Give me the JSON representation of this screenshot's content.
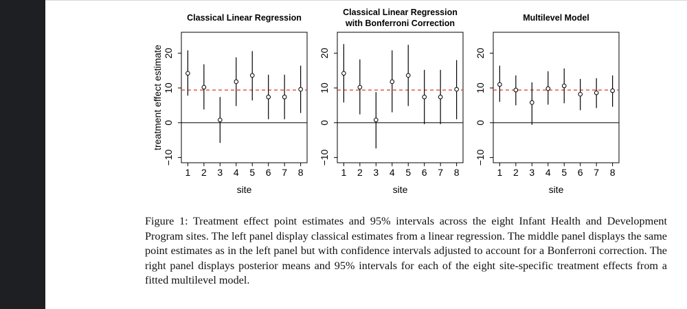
{
  "figure": {
    "caption": "Figure 1: Treatment effect point estimates and 95% intervals across the eight Infant Health and Development Program sites. The left panel display classical estimates from a linear regression. The middle panel displays the same point estimates as in the left panel but with confidence intervals adjusted to account for a Bonferroni correction. The right panel displays posterior means and 95% intervals for each of the eight site-specific treatment effects from a fitted multilevel model.",
    "colors": {
      "reference_line": "#e3352a",
      "interval": "#000000",
      "zero_line": "#000000"
    }
  },
  "chart_data": [
    {
      "type": "scatter",
      "title": [
        "Classical Linear Regression"
      ],
      "xlabel": "site",
      "ylabel": "treatment effect estimate",
      "x": [
        1,
        2,
        3,
        4,
        5,
        6,
        7,
        8
      ],
      "xticks": [
        "1",
        "2",
        "3",
        "4",
        "5",
        "6",
        "7",
        "8"
      ],
      "yticks": [
        "−10",
        "0",
        "10",
        "20"
      ],
      "ylim": [
        -11.5,
        26
      ],
      "xlim": [
        0.6,
        8.4
      ],
      "estimates": [
        14.2,
        10.2,
        0.8,
        11.8,
        13.6,
        7.4,
        7.4,
        9.6
      ],
      "lower": [
        7.8,
        3.8,
        -5.8,
        4.8,
        6.4,
        1.0,
        1.0,
        2.8
      ],
      "upper": [
        20.8,
        16.8,
        7.4,
        18.8,
        20.6,
        13.8,
        13.8,
        16.4
      ],
      "reference_line": 9.4,
      "zero_line": 0,
      "grid": false
    },
    {
      "type": "scatter",
      "title": [
        "Classical Linear Regression",
        "with Bonferroni Correction"
      ],
      "xlabel": "site",
      "ylabel": "",
      "x": [
        1,
        2,
        3,
        4,
        5,
        6,
        7,
        8
      ],
      "xticks": [
        "1",
        "2",
        "3",
        "4",
        "5",
        "6",
        "7",
        "8"
      ],
      "yticks": [
        "−10",
        "0",
        "10",
        "20"
      ],
      "ylim": [
        -11.5,
        26
      ],
      "xlim": [
        0.6,
        8.4
      ],
      "estimates": [
        14.2,
        10.2,
        0.8,
        11.8,
        13.6,
        7.4,
        7.4,
        9.6
      ],
      "lower": [
        5.8,
        2.4,
        -7.4,
        3.0,
        4.8,
        -0.4,
        -0.4,
        1.0
      ],
      "upper": [
        22.6,
        18.2,
        8.8,
        20.8,
        22.4,
        15.2,
        15.2,
        18.0
      ],
      "reference_line": 9.4,
      "zero_line": 0,
      "grid": false
    },
    {
      "type": "scatter",
      "title": [
        "Multilevel Model"
      ],
      "xlabel": "site",
      "ylabel": "",
      "x": [
        1,
        2,
        3,
        4,
        5,
        6,
        7,
        8
      ],
      "xticks": [
        "1",
        "2",
        "3",
        "4",
        "5",
        "6",
        "7",
        "8"
      ],
      "yticks": [
        "−10",
        "0",
        "10",
        "20"
      ],
      "ylim": [
        -11.5,
        26
      ],
      "xlim": [
        0.6,
        8.4
      ],
      "estimates": [
        11.0,
        9.4,
        5.8,
        9.8,
        10.6,
        8.2,
        8.6,
        9.2
      ],
      "lower": [
        6.0,
        5.0,
        -0.6,
        5.2,
        5.6,
        3.6,
        4.2,
        4.6
      ],
      "upper": [
        16.4,
        13.6,
        11.6,
        14.8,
        15.6,
        12.6,
        12.8,
        13.6
      ],
      "reference_line": 9.4,
      "zero_line": 0,
      "grid": false
    }
  ]
}
